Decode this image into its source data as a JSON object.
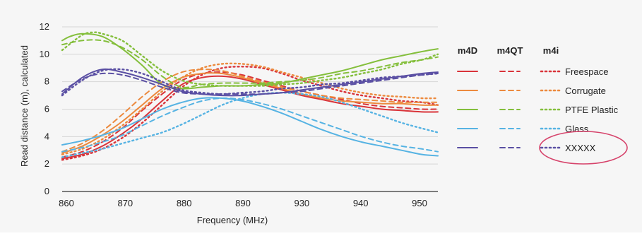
{
  "chart_data": {
    "type": "line",
    "title": "",
    "xlabel": "Frequency (MHz)",
    "ylabel": "Read distance (m), calculated",
    "xlim": [
      860,
      954
    ],
    "ylim": [
      0,
      12
    ],
    "xticks": [
      860,
      870,
      880,
      890,
      930,
      940,
      950
    ],
    "xticks_comment_free": true,
    "yticks": [
      0,
      2,
      4,
      6,
      8,
      10,
      12
    ],
    "grid": "horizontal",
    "legend": {
      "placement": "right",
      "models": [
        {
          "name": "m4D",
          "dash": "solid"
        },
        {
          "name": "m4QT",
          "dash": "dashed"
        },
        {
          "name": "m4i",
          "dash": "dotted"
        }
      ],
      "materials": [
        {
          "name": "Freespace",
          "color": "#d9343a"
        },
        {
          "name": "Corrugate",
          "color": "#ec8a3e"
        },
        {
          "name": "PTFE Plastic",
          "color": "#84bf3c"
        },
        {
          "name": "Glass",
          "color": "#56b3e3"
        },
        {
          "name": "XXXXX",
          "color": "#5a4fa3"
        }
      ]
    },
    "highlight": {
      "label": "XXXXX",
      "color": "#d6436b",
      "shape": "ellipse"
    },
    "series": [
      {
        "name": "Freespace m4D",
        "material": "Freespace",
        "model": "m4D",
        "x": [
          860,
          865,
          870,
          875,
          880,
          885,
          890,
          895,
          900,
          905,
          910,
          915,
          920,
          925,
          930,
          935,
          940,
          945,
          950,
          954
        ],
        "y": [
          2.4,
          2.7,
          3.3,
          4.2,
          5.3,
          6.6,
          7.8,
          8.3,
          8.4,
          8.2,
          7.8,
          7.4,
          7.0,
          6.7,
          6.4,
          6.2,
          6.0,
          5.9,
          5.8,
          5.8
        ]
      },
      {
        "name": "Freespace m4QT",
        "material": "Freespace",
        "model": "m4QT",
        "x": [
          860,
          865,
          870,
          875,
          880,
          885,
          890,
          895,
          900,
          905,
          910,
          915,
          920,
          925,
          930,
          935,
          940,
          945,
          950,
          954
        ],
        "y": [
          2.5,
          2.9,
          3.6,
          4.6,
          5.9,
          7.1,
          8.1,
          8.6,
          8.7,
          8.5,
          8.1,
          7.7,
          7.3,
          7.0,
          6.7,
          6.4,
          6.2,
          6.1,
          6.0,
          6.0
        ]
      },
      {
        "name": "Freespace m4i",
        "material": "Freespace",
        "model": "m4i",
        "x": [
          860,
          865,
          870,
          875,
          880,
          885,
          890,
          895,
          900,
          905,
          910,
          915,
          920,
          925,
          930,
          935,
          940,
          945,
          950,
          954
        ],
        "y": [
          2.3,
          2.6,
          3.1,
          3.9,
          5.0,
          6.3,
          7.6,
          8.5,
          9.0,
          9.1,
          9.0,
          8.6,
          8.1,
          7.7,
          7.3,
          7.0,
          6.8,
          6.6,
          6.5,
          6.3
        ]
      },
      {
        "name": "Corrugate m4D",
        "material": "Corrugate",
        "model": "m4D",
        "x": [
          860,
          865,
          870,
          875,
          880,
          885,
          890,
          895,
          900,
          905,
          910,
          915,
          920,
          925,
          930,
          935,
          940,
          945,
          950,
          954
        ],
        "y": [
          2.8,
          3.3,
          4.1,
          5.1,
          6.3,
          7.5,
          8.3,
          8.6,
          8.6,
          8.3,
          7.9,
          7.5,
          7.1,
          6.8,
          6.6,
          6.5,
          6.4,
          6.4,
          6.3,
          6.3
        ]
      },
      {
        "name": "Corrugate m4QT",
        "material": "Corrugate",
        "model": "m4QT",
        "x": [
          860,
          865,
          870,
          875,
          880,
          885,
          890,
          895,
          900,
          905,
          910,
          915,
          920,
          925,
          930,
          935,
          940,
          945,
          950,
          954
        ],
        "y": [
          2.9,
          3.5,
          4.4,
          5.6,
          6.9,
          8.0,
          8.7,
          8.9,
          8.8,
          8.4,
          8.0,
          7.6,
          7.3,
          7.0,
          6.8,
          6.7,
          6.6,
          6.5,
          6.5,
          6.5
        ]
      },
      {
        "name": "Corrugate m4i",
        "material": "Corrugate",
        "model": "m4i",
        "x": [
          860,
          865,
          870,
          875,
          880,
          885,
          890,
          895,
          900,
          905,
          910,
          915,
          920,
          925,
          930,
          935,
          940,
          945,
          950,
          954
        ],
        "y": [
          2.7,
          3.1,
          3.8,
          4.8,
          6.0,
          7.3,
          8.3,
          9.0,
          9.3,
          9.3,
          9.1,
          8.7,
          8.3,
          7.9,
          7.5,
          7.2,
          7.0,
          6.9,
          6.8,
          6.8
        ]
      },
      {
        "name": "PTFE Plastic m4D",
        "material": "PTFE Plastic",
        "model": "m4D",
        "x": [
          860,
          862,
          865,
          870,
          875,
          880,
          885,
          890,
          895,
          900,
          905,
          910,
          915,
          920,
          925,
          930,
          935,
          940,
          945,
          950,
          954
        ],
        "y": [
          11.0,
          11.3,
          11.5,
          11.3,
          10.4,
          9.2,
          7.8,
          7.5,
          7.6,
          7.7,
          7.7,
          7.8,
          7.9,
          8.2,
          8.5,
          8.8,
          9.2,
          9.6,
          9.9,
          10.2,
          10.4
        ]
      },
      {
        "name": "PTFE Plastic m4QT",
        "material": "PTFE Plastic",
        "model": "m4QT",
        "x": [
          860,
          865,
          870,
          875,
          880,
          885,
          890,
          895,
          900,
          905,
          910,
          915,
          920,
          925,
          930,
          935,
          940,
          945,
          950,
          954
        ],
        "y": [
          10.7,
          11.0,
          11.0,
          10.5,
          9.6,
          8.4,
          7.6,
          7.8,
          7.9,
          7.9,
          7.9,
          8.0,
          8.1,
          8.3,
          8.6,
          8.8,
          9.1,
          9.4,
          9.6,
          9.8
        ]
      },
      {
        "name": "PTFE Plastic m4i",
        "material": "PTFE Plastic",
        "model": "m4i",
        "x": [
          860,
          865,
          868,
          870,
          875,
          880,
          885,
          890,
          895,
          900,
          905,
          910,
          915,
          920,
          925,
          930,
          935,
          940,
          945,
          950,
          954
        ],
        "y": [
          10.3,
          11.4,
          11.6,
          11.5,
          11.0,
          9.9,
          8.8,
          8.1,
          7.8,
          7.7,
          7.7,
          7.7,
          7.8,
          7.9,
          8.1,
          8.3,
          8.6,
          8.9,
          9.3,
          9.6,
          10.0
        ]
      },
      {
        "name": "Glass m4D",
        "material": "Glass",
        "model": "m4D",
        "x": [
          860,
          865,
          870,
          875,
          880,
          885,
          890,
          895,
          900,
          905,
          910,
          915,
          920,
          925,
          930,
          935,
          940,
          945,
          950,
          954
        ],
        "y": [
          3.4,
          3.7,
          4.1,
          4.6,
          5.3,
          6.0,
          6.5,
          6.8,
          6.8,
          6.6,
          6.2,
          5.7,
          5.1,
          4.5,
          4.0,
          3.6,
          3.3,
          3.0,
          2.7,
          2.6
        ]
      },
      {
        "name": "Glass m4QT",
        "material": "Glass",
        "model": "m4QT",
        "x": [
          860,
          865,
          870,
          875,
          880,
          885,
          890,
          895,
          900,
          905,
          910,
          915,
          920,
          925,
          930,
          935,
          940,
          945,
          950,
          954
        ],
        "y": [
          2.9,
          3.2,
          3.6,
          4.1,
          4.8,
          5.5,
          6.1,
          6.6,
          6.8,
          6.7,
          6.4,
          6.0,
          5.5,
          5.0,
          4.5,
          4.0,
          3.6,
          3.3,
          3.1,
          2.9
        ]
      },
      {
        "name": "Glass m4i",
        "material": "Glass",
        "model": "m4i",
        "x": [
          860,
          865,
          870,
          875,
          880,
          885,
          890,
          895,
          900,
          905,
          910,
          915,
          920,
          925,
          930,
          935,
          940,
          945,
          950,
          954
        ],
        "y": [
          2.5,
          2.8,
          3.1,
          3.5,
          3.9,
          4.3,
          4.9,
          5.6,
          6.3,
          6.8,
          7.1,
          7.2,
          7.1,
          6.9,
          6.5,
          6.0,
          5.5,
          5.0,
          4.6,
          4.3
        ]
      },
      {
        "name": "XXXXX m4D",
        "material": "XXXXX",
        "model": "m4D",
        "x": [
          860,
          865,
          870,
          875,
          880,
          885,
          890,
          895,
          900,
          905,
          910,
          915,
          920,
          925,
          930,
          935,
          940,
          945,
          950,
          954
        ],
        "y": [
          7.1,
          8.3,
          8.9,
          8.7,
          8.3,
          7.8,
          7.3,
          7.1,
          7.0,
          7.0,
          7.1,
          7.2,
          7.4,
          7.6,
          7.8,
          8.0,
          8.2,
          8.4,
          8.6,
          8.7
        ]
      },
      {
        "name": "XXXXX m4QT",
        "material": "XXXXX",
        "model": "m4QT",
        "x": [
          860,
          865,
          870,
          875,
          880,
          885,
          890,
          895,
          900,
          905,
          910,
          915,
          920,
          925,
          930,
          935,
          940,
          945,
          950,
          954
        ],
        "y": [
          7.3,
          8.2,
          8.6,
          8.5,
          8.1,
          7.6,
          7.2,
          7.1,
          7.1,
          7.1,
          7.1,
          7.2,
          7.3,
          7.5,
          7.7,
          7.9,
          8.1,
          8.3,
          8.5,
          8.6
        ]
      },
      {
        "name": "XXXXX m4i",
        "material": "XXXXX",
        "model": "m4i",
        "x": [
          860,
          865,
          870,
          875,
          880,
          885,
          890,
          895,
          900,
          905,
          910,
          915,
          920,
          925,
          930,
          935,
          940,
          945,
          950,
          954
        ],
        "y": [
          7.0,
          8.1,
          8.8,
          8.9,
          8.6,
          8.0,
          7.4,
          7.2,
          7.1,
          7.2,
          7.3,
          7.5,
          7.6,
          7.8,
          7.9,
          8.1,
          8.3,
          8.4,
          8.5,
          8.6
        ]
      }
    ]
  }
}
